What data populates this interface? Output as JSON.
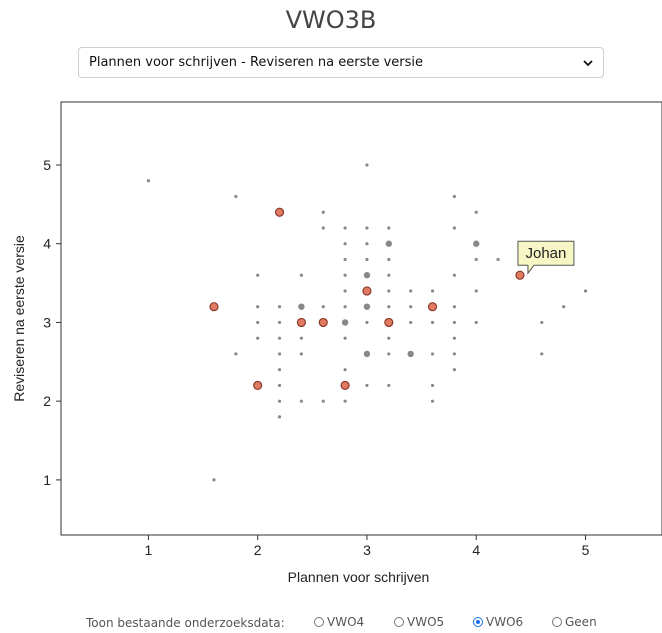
{
  "title": "VWO3B",
  "selector": {
    "value": "Plannen voor schrijven - Reviseren na eerste versie",
    "icon": "chevron-down-icon"
  },
  "chart_data": {
    "type": "scatter",
    "xlabel": "Plannen voor schrijven",
    "ylabel": "Reviseren na eerste versie",
    "xlim": [
      0.2,
      5.7
    ],
    "ylim": [
      0.3,
      5.8
    ],
    "xticks": [
      1,
      2,
      3,
      4,
      5
    ],
    "yticks": [
      1,
      2,
      3,
      4,
      5
    ],
    "background_points": [
      [
        1.0,
        4.8
      ],
      [
        1.6,
        1.0
      ],
      [
        1.8,
        4.6
      ],
      [
        1.8,
        2.6
      ],
      [
        2.0,
        3.6
      ],
      [
        2.0,
        3.2
      ],
      [
        2.0,
        3.0
      ],
      [
        2.0,
        2.8
      ],
      [
        2.2,
        3.2
      ],
      [
        2.2,
        3.0
      ],
      [
        2.2,
        2.8
      ],
      [
        2.2,
        2.6
      ],
      [
        2.2,
        2.4
      ],
      [
        2.2,
        2.2
      ],
      [
        2.2,
        2.0
      ],
      [
        2.2,
        1.8
      ],
      [
        2.4,
        3.6
      ],
      [
        2.4,
        3.2
      ],
      [
        2.4,
        2.8
      ],
      [
        2.4,
        2.6
      ],
      [
        2.4,
        2.0
      ],
      [
        2.6,
        4.4
      ],
      [
        2.6,
        4.2
      ],
      [
        2.6,
        3.2
      ],
      [
        2.6,
        2.0
      ],
      [
        2.8,
        4.2
      ],
      [
        2.8,
        4.0
      ],
      [
        2.8,
        3.8
      ],
      [
        2.8,
        3.6
      ],
      [
        2.8,
        3.4
      ],
      [
        2.8,
        3.2
      ],
      [
        2.8,
        3.0
      ],
      [
        2.8,
        2.8
      ],
      [
        2.8,
        2.4
      ],
      [
        2.8,
        2.0
      ],
      [
        3.0,
        5.0
      ],
      [
        3.0,
        4.2
      ],
      [
        3.0,
        4.0
      ],
      [
        3.0,
        3.8
      ],
      [
        3.0,
        3.6
      ],
      [
        3.0,
        3.2
      ],
      [
        3.0,
        3.0
      ],
      [
        3.0,
        2.6
      ],
      [
        3.0,
        2.2
      ],
      [
        3.2,
        4.2
      ],
      [
        3.2,
        4.0
      ],
      [
        3.2,
        3.8
      ],
      [
        3.2,
        3.6
      ],
      [
        3.2,
        3.4
      ],
      [
        3.2,
        3.2
      ],
      [
        3.2,
        2.8
      ],
      [
        3.2,
        2.6
      ],
      [
        3.2,
        2.2
      ],
      [
        3.4,
        3.4
      ],
      [
        3.4,
        3.2
      ],
      [
        3.4,
        3.0
      ],
      [
        3.4,
        2.6
      ],
      [
        3.6,
        3.4
      ],
      [
        3.6,
        3.0
      ],
      [
        3.6,
        2.6
      ],
      [
        3.6,
        2.2
      ],
      [
        3.6,
        2.0
      ],
      [
        3.8,
        4.6
      ],
      [
        3.8,
        4.2
      ],
      [
        3.8,
        3.6
      ],
      [
        3.8,
        3.2
      ],
      [
        3.8,
        3.0
      ],
      [
        3.8,
        2.8
      ],
      [
        3.8,
        2.6
      ],
      [
        3.8,
        2.4
      ],
      [
        4.0,
        4.4
      ],
      [
        4.0,
        4.0
      ],
      [
        4.0,
        3.8
      ],
      [
        4.0,
        3.4
      ],
      [
        4.0,
        3.0
      ],
      [
        4.2,
        3.8
      ],
      [
        4.6,
        3.0
      ],
      [
        4.6,
        2.6
      ],
      [
        4.8,
        3.2
      ],
      [
        5.0,
        3.4
      ]
    ],
    "larger_points": [
      [
        2.4,
        3.2
      ],
      [
        2.8,
        3.0
      ],
      [
        3.0,
        3.6
      ],
      [
        3.0,
        3.2
      ],
      [
        3.0,
        2.6
      ],
      [
        3.2,
        4.0
      ],
      [
        3.4,
        2.6
      ],
      [
        4.0,
        4.0
      ]
    ],
    "highlight_points": [
      [
        1.6,
        3.2
      ],
      [
        2.0,
        2.2
      ],
      [
        2.2,
        4.4
      ],
      [
        2.4,
        3.0
      ],
      [
        2.6,
        3.0
      ],
      [
        2.8,
        2.2
      ],
      [
        3.0,
        3.4
      ],
      [
        3.2,
        3.0
      ],
      [
        3.6,
        3.2
      ],
      [
        4.4,
        3.6
      ]
    ],
    "annotation": {
      "text": "Johan",
      "x": 4.4,
      "y": 3.6
    },
    "colors": {
      "background": "#888888",
      "highlight_fill": "#e07a62",
      "highlight_stroke": "#8a3a2a",
      "tooltip_fill": "#f6f7c4",
      "tooltip_stroke": "#555555"
    }
  },
  "footer": {
    "label": "Toon bestaande onderzoeksdata:",
    "options": [
      {
        "label": "VWO4",
        "checked": false
      },
      {
        "label": "VWO5",
        "checked": false
      },
      {
        "label": "VWO6",
        "checked": true
      },
      {
        "label": "Geen",
        "checked": false
      }
    ]
  }
}
